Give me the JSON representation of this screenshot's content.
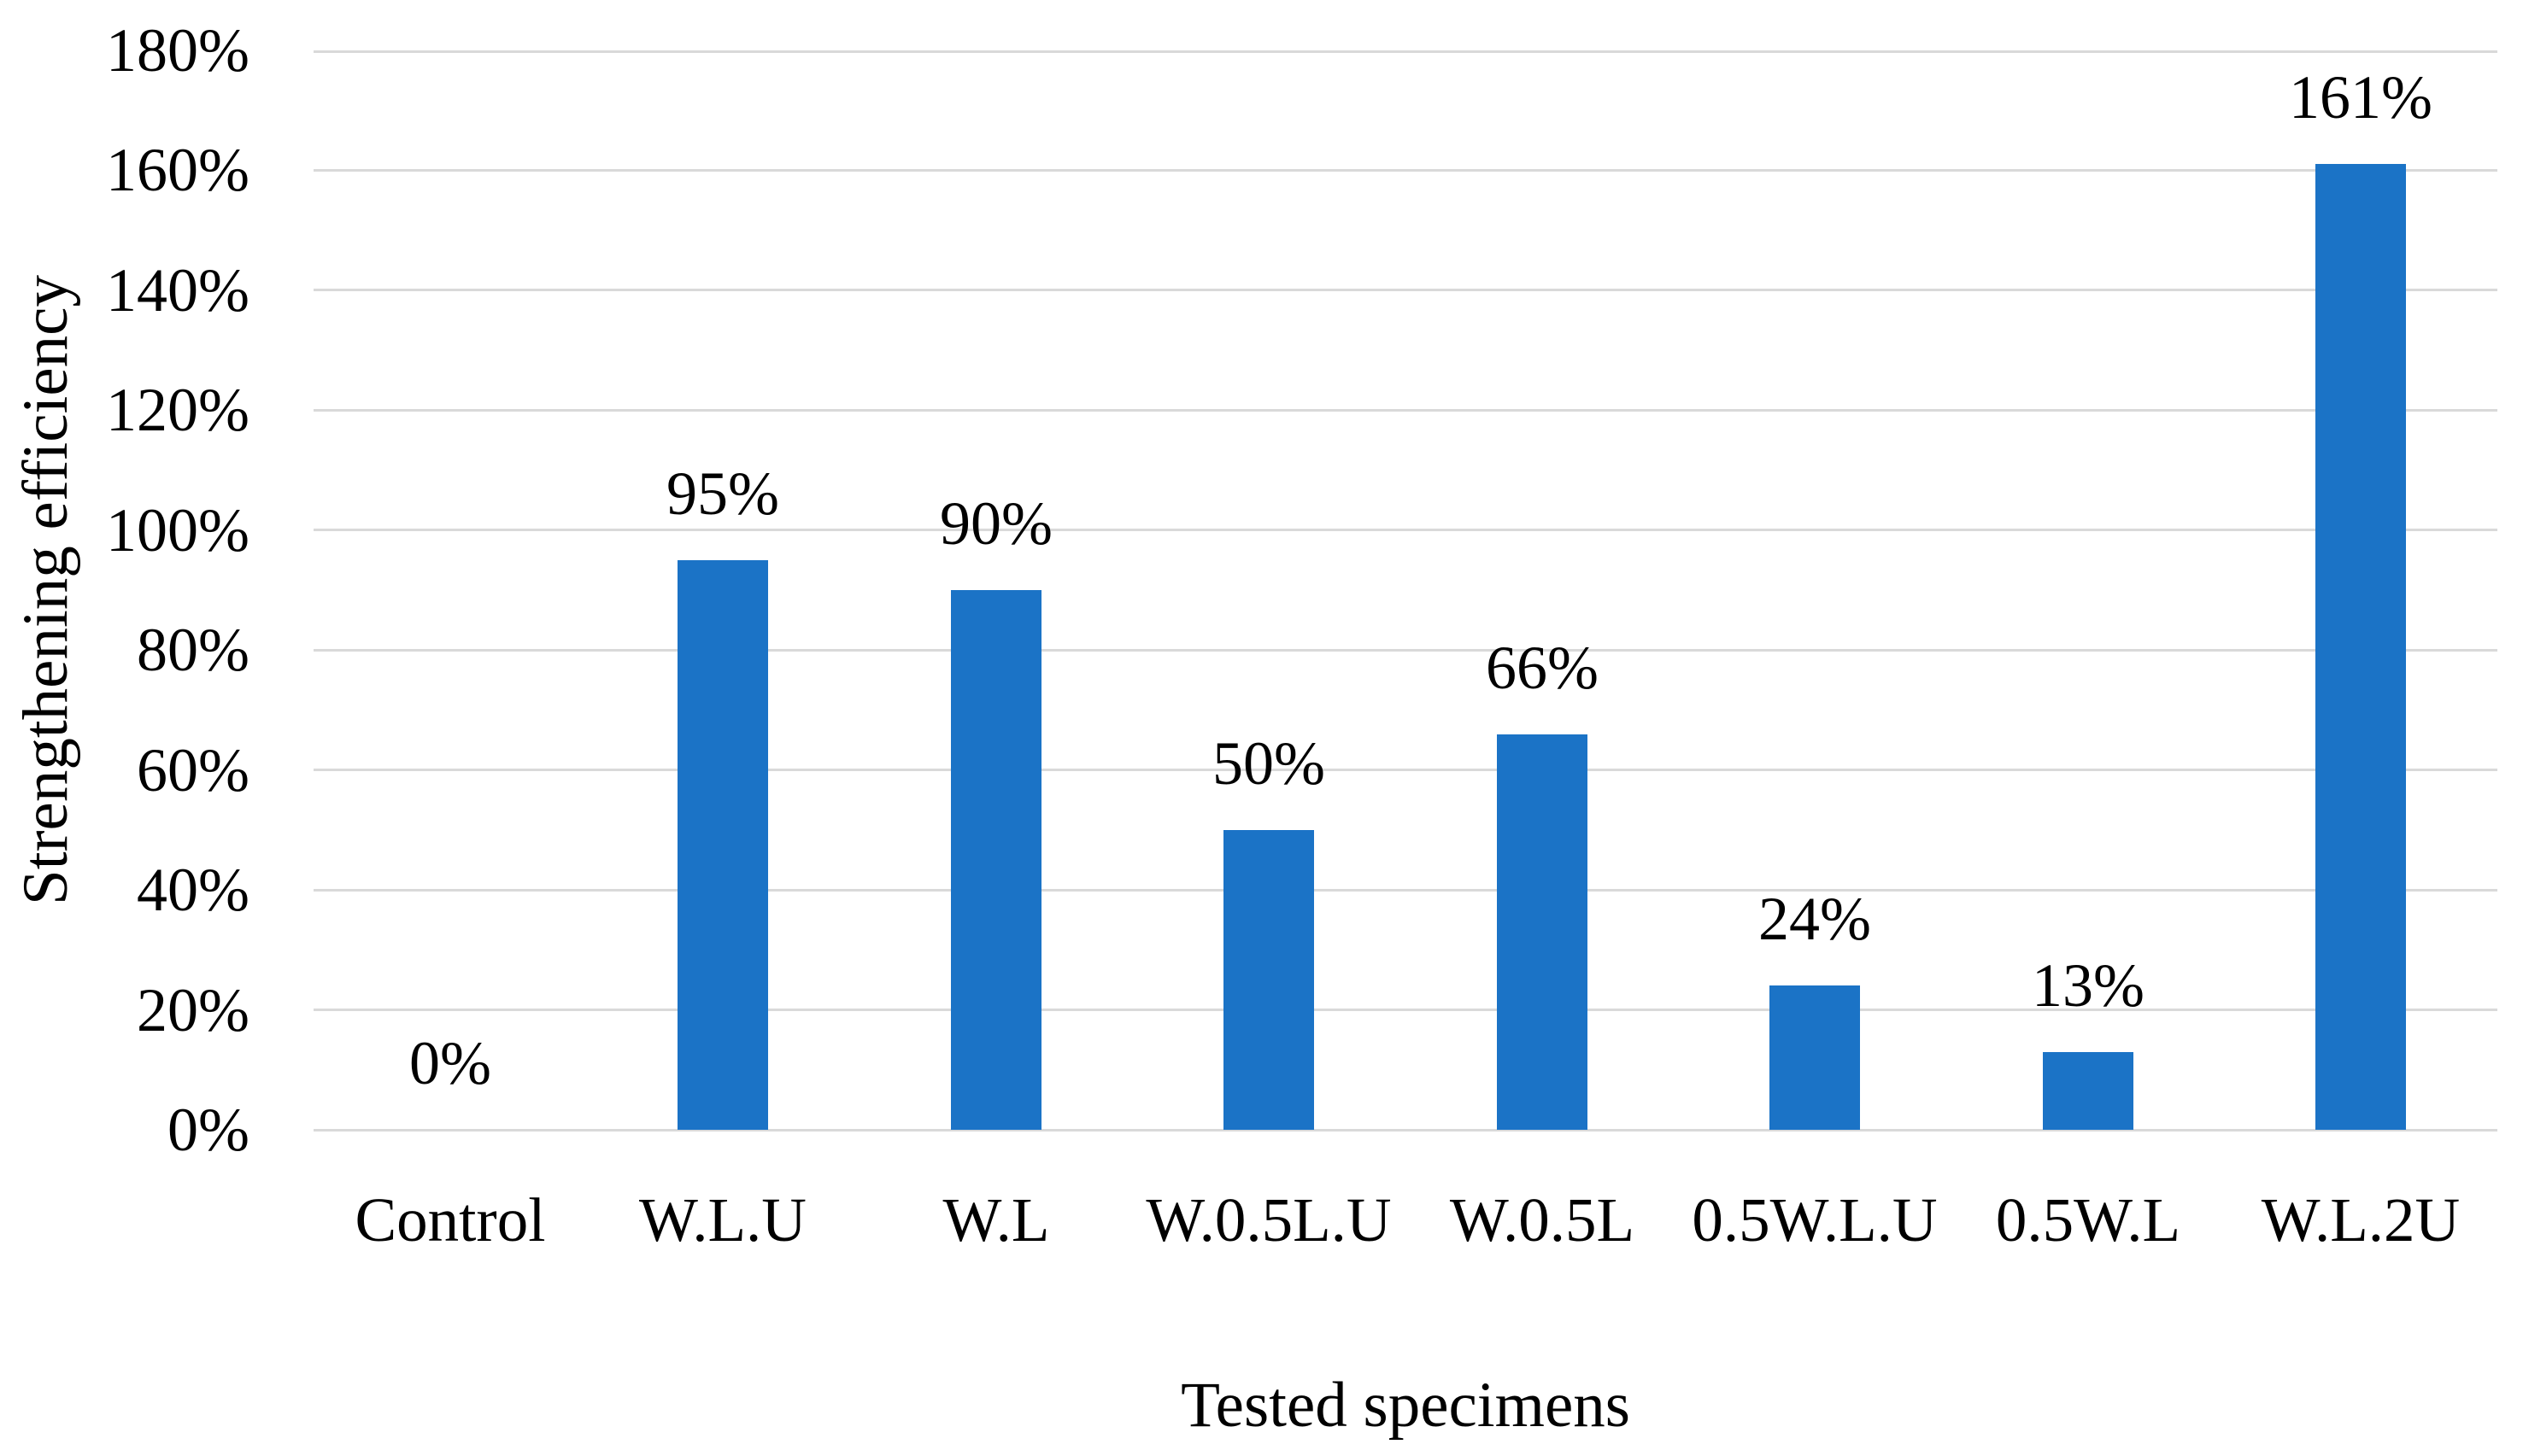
{
  "chart_data": {
    "type": "bar",
    "title": "",
    "categories": [
      "Control",
      "W.L.U",
      "W.L",
      "W.0.5L.U",
      "W.0.5L",
      "0.5W.L.U",
      "0.5W.L",
      "W.L.2U"
    ],
    "values": [
      0,
      95,
      90,
      50,
      66,
      24,
      13,
      161
    ],
    "data_labels": [
      "0%",
      "95%",
      "90%",
      "50%",
      "66%",
      "24%",
      "13%",
      "161%"
    ],
    "xlabel": "Tested specimens",
    "ylabel": "Strengthening efficiency",
    "ylim": [
      0,
      180
    ],
    "ytick_step": 20,
    "yticks": [
      "0%",
      "20%",
      "40%",
      "60%",
      "80%",
      "100%",
      "120%",
      "140%",
      "160%",
      "180%"
    ],
    "grid": true,
    "legend": "none",
    "colors": {
      "bar": "#1B73C6",
      "gridline": "#D9D9D9",
      "text": "#000000",
      "background": "#FFFFFF"
    }
  }
}
